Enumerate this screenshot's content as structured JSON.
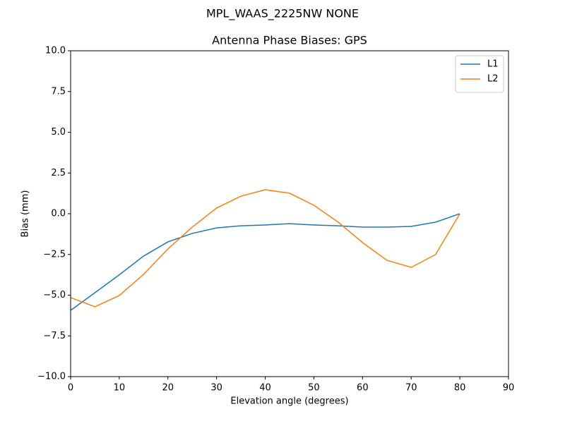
{
  "chart_data": {
    "type": "line",
    "suptitle": "MPL_WAAS_2225NW NONE",
    "title": "Antenna Phase Biases: GPS",
    "x_label": "Elevation angle (degrees)",
    "y_label": "Bias (mm)",
    "x": [
      0,
      5,
      10,
      15,
      20,
      25,
      30,
      35,
      40,
      45,
      50,
      55,
      60,
      65,
      70,
      75,
      80
    ],
    "series": [
      {
        "name": "L1",
        "color": "#1f77b4",
        "values": [
          -5.93,
          -4.85,
          -3.75,
          -2.6,
          -1.73,
          -1.21,
          -0.87,
          -0.74,
          -0.69,
          -0.61,
          -0.69,
          -0.74,
          -0.82,
          -0.82,
          -0.78,
          -0.52,
          0
        ]
      },
      {
        "name": "L2",
        "color": "#ff7f0e",
        "values": [
          -5.15,
          -5.71,
          -5.02,
          -3.72,
          -2.16,
          -0.82,
          0.35,
          1.08,
          1.47,
          1.26,
          0.52,
          -0.52,
          -1.77,
          -2.86,
          -3.29,
          -2.51,
          0
        ]
      }
    ],
    "xlim": [
      0,
      90
    ],
    "xticks": [
      0,
      10,
      20,
      30,
      40,
      50,
      60,
      70,
      80,
      90
    ],
    "ylim": [
      -10,
      10
    ],
    "yticks": [
      {
        "value": -10,
        "label": "−10.0"
      },
      {
        "value": -7.5,
        "label": "−7.5"
      },
      {
        "value": -5,
        "label": "−5.0"
      },
      {
        "value": -2.5,
        "label": "−2.5"
      },
      {
        "value": 0,
        "label": "0.0"
      },
      {
        "value": 2.5,
        "label": "2.5"
      },
      {
        "value": 5,
        "label": "5.0"
      },
      {
        "value": 7.5,
        "label": "7.5"
      },
      {
        "value": 10,
        "label": "10.0"
      }
    ],
    "legend": "upper right",
    "grid": false
  }
}
